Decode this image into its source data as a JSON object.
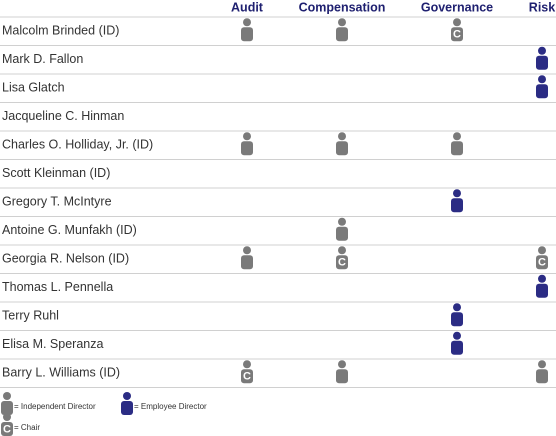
{
  "table": {
    "columns": [
      "Audit",
      "Compensation",
      "Governance",
      "Risk"
    ],
    "rows": [
      {
        "name": "Malcolm Brinded (ID)",
        "cells": [
          "Independent Director",
          "Independent Director",
          "Chair",
          null
        ]
      },
      {
        "name": "Mark D. Fallon",
        "cells": [
          null,
          null,
          null,
          "Employee Director"
        ]
      },
      {
        "name": "Lisa Glatch",
        "cells": [
          null,
          null,
          null,
          "Employee Director"
        ]
      },
      {
        "name": "Jacqueline C. Hinman",
        "cells": [
          null,
          null,
          null,
          null
        ]
      },
      {
        "name": "Charles O. Holliday, Jr. (ID)",
        "cells": [
          "Independent Director",
          "Independent Director",
          "Independent Director",
          null
        ]
      },
      {
        "name": "Scott Kleinman (ID)",
        "cells": [
          null,
          null,
          null,
          null
        ]
      },
      {
        "name": "Gregory T. McIntyre",
        "cells": [
          null,
          null,
          "Employee Director",
          null
        ]
      },
      {
        "name": "Antoine G. Munfakh (ID)",
        "cells": [
          null,
          "Independent Director",
          null,
          null
        ]
      },
      {
        "name": "Georgia R. Nelson (ID)",
        "cells": [
          "Independent Director",
          "Chair",
          null,
          "Chair"
        ]
      },
      {
        "name": "Thomas L. Pennella",
        "cells": [
          null,
          null,
          null,
          "Employee Director"
        ]
      },
      {
        "name": "Terry Ruhl",
        "cells": [
          null,
          null,
          "Employee Director",
          null
        ]
      },
      {
        "name": "Elisa M. Speranza",
        "cells": [
          null,
          null,
          "Employee Director",
          null
        ]
      },
      {
        "name": "Barry L. Williams (ID)",
        "cells": [
          "Chair",
          "Independent Director",
          null,
          "Independent Director"
        ]
      }
    ]
  },
  "legend": [
    {
      "label": "Independent Director",
      "color": "#7a7a7a"
    },
    {
      "label": "Employee Director",
      "color": "#2b2c84"
    },
    {
      "label": "Chair",
      "color": "#7a7a7a",
      "mark": "C"
    }
  ]
}
